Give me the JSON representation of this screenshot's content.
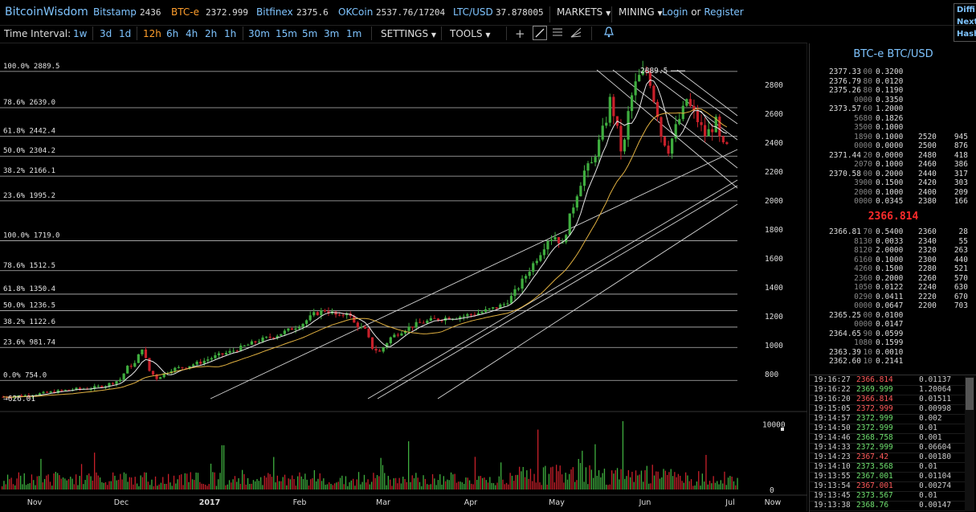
{
  "header": {
    "brand": "BitcoinWisdom",
    "exchanges": [
      {
        "name": "Bitstamp",
        "price": "2436",
        "active": false
      },
      {
        "name": "BTC-e",
        "price": "2372.999",
        "active": true
      },
      {
        "name": "Bitfinex",
        "price": "2375.6",
        "active": false
      },
      {
        "name": "OKCoin",
        "price": "2537.76/17204",
        "active": false
      },
      {
        "name": "LTC/USD",
        "price": "37.878005",
        "active": false
      }
    ],
    "markets_label": "MARKETS",
    "mining_label": "MINING",
    "login_label": "Login",
    "or_label": "or",
    "register_label": "Register",
    "right_items": [
      "Diffi",
      "Next",
      "Hash"
    ]
  },
  "toolbar": {
    "time_interval_label": "Time Interval:",
    "intervals": [
      "1w",
      "3d",
      "1d",
      "12h",
      "6h",
      "4h",
      "2h",
      "1h",
      "30m",
      "15m",
      "5m",
      "3m",
      "1m"
    ],
    "active_interval": "12h",
    "settings_label": "SETTINGS",
    "tools_label": "TOOLS"
  },
  "chart_data": {
    "type": "candlestick",
    "title": "",
    "x_ticks": [
      "Nov",
      "Dec",
      "2017",
      "Feb",
      "Mar",
      "Apr",
      "May",
      "Jun",
      "Jul",
      "Now"
    ],
    "y_ticks": [
      800,
      1000,
      1200,
      1400,
      1600,
      1800,
      2000,
      2200,
      2400,
      2600,
      2800
    ],
    "volume_ticks": [
      0,
      10000
    ],
    "ylim": [
      600,
      2980
    ],
    "volume_max": 16000,
    "fib_sets": [
      {
        "levels": [
          {
            "pct": "100.0%",
            "value": 2889.5
          },
          {
            "pct": "78.6%",
            "value": 2639.0
          },
          {
            "pct": "61.8%",
            "value": 2442.4
          },
          {
            "pct": "50.0%",
            "value": 2304.2
          },
          {
            "pct": "38.2%",
            "value": 2166.1
          },
          {
            "pct": "23.6%",
            "value": 1995.2
          }
        ]
      },
      {
        "levels": [
          {
            "pct": "100.0%",
            "value": 1719.0
          },
          {
            "pct": "78.6%",
            "value": 1512.5
          },
          {
            "pct": "61.8%",
            "value": 1350.4
          },
          {
            "pct": "50.0%",
            "value": 1236.5
          },
          {
            "pct": "38.2%",
            "value": 1122.6
          },
          {
            "pct": "23.6%",
            "value": 981.74
          },
          {
            "pct": "0.0%",
            "value": 754.0
          }
        ]
      }
    ],
    "price_path": [
      [
        0,
        640
      ],
      [
        3,
        650
      ],
      [
        6,
        668
      ],
      [
        9,
        690
      ],
      [
        12,
        700
      ],
      [
        14,
        720
      ],
      [
        15,
        740
      ],
      [
        16,
        760
      ],
      [
        17,
        845
      ],
      [
        18,
        870
      ],
      [
        19,
        980
      ],
      [
        19.5,
        900
      ],
      [
        20,
        820
      ],
      [
        21,
        770
      ],
      [
        22,
        800
      ],
      [
        23,
        830
      ],
      [
        25,
        850
      ],
      [
        27,
        880
      ],
      [
        29,
        920
      ],
      [
        31,
        950
      ],
      [
        33,
        990
      ],
      [
        35,
        1030
      ],
      [
        37,
        1060
      ],
      [
        39,
        1100
      ],
      [
        41,
        1150
      ],
      [
        42.5,
        1210
      ],
      [
        44,
        1240
      ],
      [
        45,
        1220
      ],
      [
        46,
        1190
      ],
      [
        47,
        1230
      ],
      [
        48,
        1150
      ],
      [
        49.5,
        1100
      ],
      [
        50.5,
        980
      ],
      [
        51.5,
        950
      ],
      [
        53,
        1050
      ],
      [
        55,
        1110
      ],
      [
        57,
        1150
      ],
      [
        59,
        1175
      ],
      [
        61,
        1190
      ],
      [
        63,
        1200
      ],
      [
        65,
        1220
      ],
      [
        67,
        1250
      ],
      [
        68.5,
        1280
      ],
      [
        69.5,
        1330
      ],
      [
        70.5,
        1400
      ],
      [
        71.5,
        1480
      ],
      [
        72.5,
        1560
      ],
      [
        73.5,
        1640
      ],
      [
        74.5,
        1730
      ],
      [
        75.5,
        1750
      ],
      [
        76.5,
        1690
      ],
      [
        77.5,
        1880
      ],
      [
        78.5,
        2050
      ],
      [
        79.5,
        2200
      ],
      [
        80.5,
        2250
      ],
      [
        81.5,
        2400
      ],
      [
        82.5,
        2560
      ],
      [
        83,
        2690
      ],
      [
        83.5,
        2600
      ],
      [
        84,
        2480
      ],
      [
        84.5,
        2350
      ],
      [
        85,
        2400
      ],
      [
        85.5,
        2600
      ],
      [
        86,
        2720
      ],
      [
        86.5,
        2800
      ],
      [
        87,
        2850
      ],
      [
        87.5,
        2870
      ],
      [
        88,
        2889
      ],
      [
        88.5,
        2820
      ],
      [
        89,
        2700
      ],
      [
        89.5,
        2600
      ],
      [
        90,
        2450
      ],
      [
        91,
        2350
      ],
      [
        92,
        2500
      ],
      [
        93,
        2620
      ],
      [
        93.5,
        2700
      ],
      [
        94,
        2640
      ],
      [
        95,
        2550
      ],
      [
        96,
        2450
      ],
      [
        97,
        2500
      ],
      [
        97.5,
        2540
      ],
      [
        98,
        2420
      ],
      [
        98.5,
        2370
      ],
      [
        99,
        2367
      ]
    ],
    "peak_label": "2889.5",
    "low_label": "626.01"
  },
  "order_book": {
    "title": "BTC-e BTC/USD",
    "asks": [
      {
        "price": "2377.33",
        "dim": "00",
        "amount": "0.3200"
      },
      {
        "price": "2376.79",
        "dim": "80",
        "amount": "0.0120"
      },
      {
        "price": "2375.26",
        "dim": "80",
        "amount": "0.1190"
      },
      {
        "price": "",
        "dim": "0000",
        "amount": "0.3350"
      },
      {
        "price": "2373.57",
        "dim": "60",
        "amount": "1.2000"
      },
      {
        "price": "",
        "dim": "5680",
        "amount": "0.1826"
      },
      {
        "price": "",
        "dim": "3500",
        "amount": "0.1000"
      },
      {
        "price": "",
        "dim": "1890",
        "amount": "0.1000"
      },
      {
        "price": "",
        "dim": "0000",
        "amount": "0.0000"
      },
      {
        "price": "2371.44",
        "dim": "20",
        "amount": "0.0000"
      },
      {
        "price": "",
        "dim": "2070",
        "amount": "0.1000"
      },
      {
        "price": "2370.58",
        "dim": "00",
        "amount": "0.2000"
      },
      {
        "price": "",
        "dim": "3900",
        "amount": "0.1500"
      },
      {
        "price": "",
        "dim": "2000",
        "amount": "0.1000"
      },
      {
        "price": "",
        "dim": "0000",
        "amount": "0.0345"
      }
    ],
    "ask_depth": [
      {
        "price": "2520",
        "size": "945"
      },
      {
        "price": "2500",
        "size": "876"
      },
      {
        "price": "2480",
        "size": "418"
      },
      {
        "price": "2460",
        "size": "386"
      },
      {
        "price": "2440",
        "size": "317"
      },
      {
        "price": "2420",
        "size": "303"
      },
      {
        "price": "2400",
        "size": "209"
      },
      {
        "price": "2380",
        "size": "166"
      }
    ],
    "last_price": "2366.814",
    "bids": [
      {
        "price": "2366.81",
        "dim": "70",
        "amount": "0.5400"
      },
      {
        "price": "",
        "dim": "8130",
        "amount": "0.0033"
      },
      {
        "price": "",
        "dim": "8120",
        "amount": "2.0000"
      },
      {
        "price": "",
        "dim": "6160",
        "amount": "0.1000"
      },
      {
        "price": "",
        "dim": "4260",
        "amount": "0.1500"
      },
      {
        "price": "",
        "dim": "2360",
        "amount": "0.2000"
      },
      {
        "price": "",
        "dim": "1050",
        "amount": "0.0122"
      },
      {
        "price": "",
        "dim": "0290",
        "amount": "0.0411"
      },
      {
        "price": "",
        "dim": "0000",
        "amount": "0.0647"
      },
      {
        "price": "2365.25",
        "dim": "00",
        "amount": "0.0100"
      },
      {
        "price": "",
        "dim": "0000",
        "amount": "0.0147"
      },
      {
        "price": "2364.65",
        "dim": "90",
        "amount": "0.0599"
      },
      {
        "price": "",
        "dim": "1080",
        "amount": "0.1599"
      },
      {
        "price": "2363.39",
        "dim": "10",
        "amount": "0.0010"
      },
      {
        "price": "2362.60",
        "dim": "10",
        "amount": "0.2141"
      }
    ],
    "bid_depth": [
      {
        "price": "2360",
        "size": "28"
      },
      {
        "price": "2340",
        "size": "55"
      },
      {
        "price": "2320",
        "size": "263"
      },
      {
        "price": "2300",
        "size": "440"
      },
      {
        "price": "2280",
        "size": "521"
      },
      {
        "price": "2260",
        "size": "570"
      },
      {
        "price": "2240",
        "size": "630"
      },
      {
        "price": "2220",
        "size": "670"
      },
      {
        "price": "2200",
        "size": "703"
      }
    ]
  },
  "trades": [
    {
      "time": "19:16:27",
      "price": "2366.814",
      "side": "sell",
      "amount": "0.01137"
    },
    {
      "time": "19:16:22",
      "price": "2369.999",
      "side": "buy",
      "amount": "1.20064"
    },
    {
      "time": "19:16:20",
      "price": "2366.814",
      "side": "sell",
      "amount": "0.01511"
    },
    {
      "time": "19:15:05",
      "price": "2372.999",
      "side": "sell",
      "amount": "0.00998"
    },
    {
      "time": "19:14:57",
      "price": "2372.999",
      "side": "buy",
      "amount": "0.002"
    },
    {
      "time": "19:14:50",
      "price": "2372.999",
      "side": "buy",
      "amount": "0.01"
    },
    {
      "time": "19:14:46",
      "price": "2368.758",
      "side": "buy",
      "amount": "0.001"
    },
    {
      "time": "19:14:33",
      "price": "2372.999",
      "side": "buy",
      "amount": "0.06604"
    },
    {
      "time": "19:14:23",
      "price": "2367.42",
      "side": "sell",
      "amount": "0.00180"
    },
    {
      "time": "19:14:10",
      "price": "2373.568",
      "side": "buy",
      "amount": "0.01"
    },
    {
      "time": "19:13:55",
      "price": "2367.001",
      "side": "buy",
      "amount": "0.01104"
    },
    {
      "time": "19:13:54",
      "price": "2367.001",
      "side": "sell",
      "amount": "0.00274"
    },
    {
      "time": "19:13:45",
      "price": "2373.567",
      "side": "buy",
      "amount": "0.01"
    },
    {
      "time": "19:13:38",
      "price": "2368.76",
      "side": "buy",
      "amount": "0.00147"
    }
  ],
  "colors": {
    "up": "#3fae3f",
    "down": "#c8202a",
    "link": "#7fc4ff",
    "accent": "#ff9e2c",
    "grid": "#cfcfcf"
  }
}
